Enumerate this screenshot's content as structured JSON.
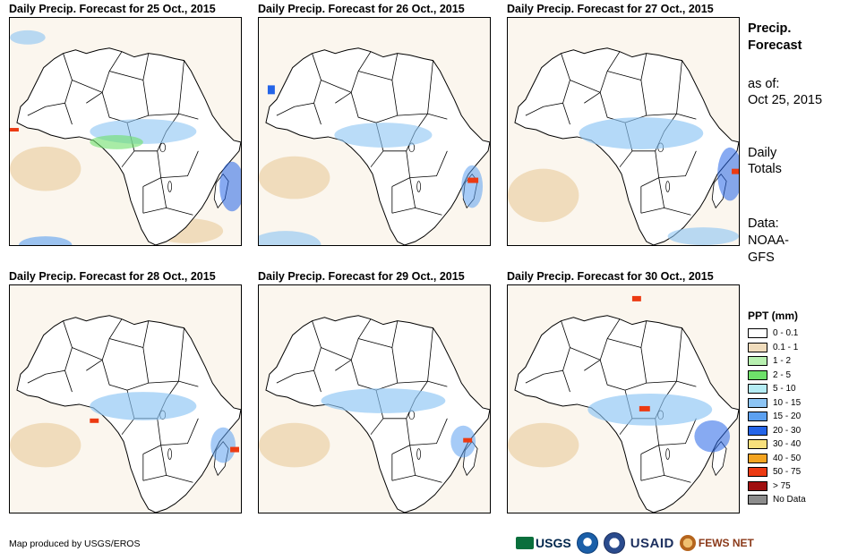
{
  "panels": [
    {
      "title": "Daily Precip. Forecast for 25 Oct., 2015"
    },
    {
      "title": "Daily Precip. Forecast for 26 Oct., 2015"
    },
    {
      "title": "Daily Precip. Forecast for 27 Oct., 2015"
    },
    {
      "title": "Daily Precip. Forecast for 28 Oct., 2015"
    },
    {
      "title": "Daily Precip. Forecast for 29 Oct., 2015"
    },
    {
      "title": "Daily Precip. Forecast for 30 Oct., 2015"
    }
  ],
  "sidebar": {
    "title_line1": "Precip.",
    "title_line2": "Forecast",
    "asof_label": "as of:",
    "asof_date": "Oct 25, 2015",
    "totals_line1": "Daily",
    "totals_line2": "Totals",
    "data_line1": "Data:",
    "data_line2": "NOAA-",
    "data_line3": "GFS"
  },
  "legend": {
    "title": "PPT (mm)",
    "items": [
      {
        "label": "0 - 0.1",
        "color": "#ffffff"
      },
      {
        "label": "0.1 - 1",
        "color": "#f0dcbc"
      },
      {
        "label": "1 - 2",
        "color": "#b8f0b0"
      },
      {
        "label": "2 - 5",
        "color": "#6ee06a"
      },
      {
        "label": "5 - 10",
        "color": "#b4ecf4"
      },
      {
        "label": "10 - 15",
        "color": "#8cc4f4"
      },
      {
        "label": "15 - 20",
        "color": "#5ca0f0"
      },
      {
        "label": "20 - 30",
        "color": "#2464e8"
      },
      {
        "label": "30 - 40",
        "color": "#f8e07c"
      },
      {
        "label": "40 - 50",
        "color": "#f4a420"
      },
      {
        "label": "50 - 75",
        "color": "#ec3a12"
      },
      {
        "label": "> 75",
        "color": "#a01010"
      },
      {
        "label": "No Data",
        "color": "#8c8c8c"
      }
    ]
  },
  "footer": {
    "credit": "Map produced by USGS/EROS"
  },
  "logos": {
    "usgs": "USGS",
    "usaid": "USAID",
    "fews": "FEWS NET"
  }
}
